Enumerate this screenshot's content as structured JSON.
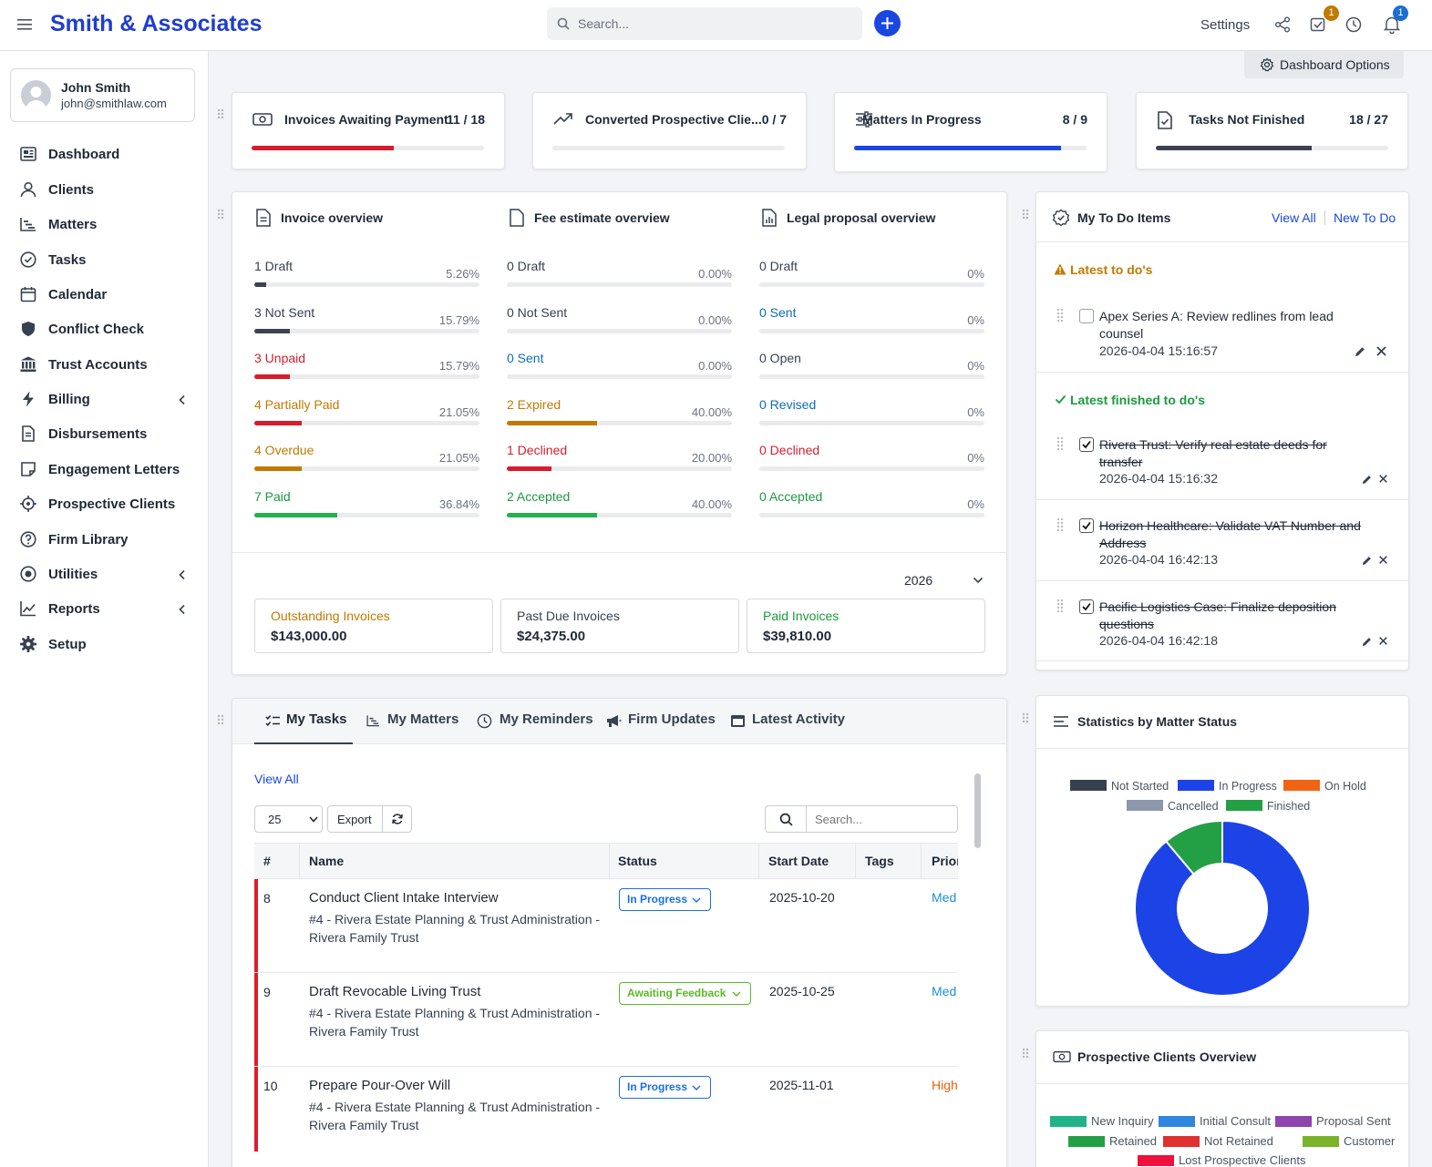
{
  "topbar": {
    "brand": "Smith & Associates",
    "search_placeholder": "Search...",
    "settings": "Settings",
    "task_badge": "1",
    "notif_badge": "1"
  },
  "user": {
    "name": "John Smith",
    "email": "john@smithlaw.com"
  },
  "nav": [
    {
      "label": "Dashboard",
      "icon": "dashboard-icon"
    },
    {
      "label": "Clients",
      "icon": "user-icon"
    },
    {
      "label": "Matters",
      "icon": "matters-icon"
    },
    {
      "label": "Tasks",
      "icon": "check-circle-icon"
    },
    {
      "label": "Calendar",
      "icon": "calendar-icon"
    },
    {
      "label": "Conflict Check",
      "icon": "shield-icon"
    },
    {
      "label": "Trust Accounts",
      "icon": "bank-icon"
    },
    {
      "label": "Billing",
      "icon": "bolt-icon"
    },
    {
      "label": "Disbursements",
      "icon": "document-icon"
    },
    {
      "label": "Engagement Letters",
      "icon": "note-icon"
    },
    {
      "label": "Prospective Clients",
      "icon": "crosshair-icon"
    },
    {
      "label": "Firm Library",
      "icon": "question-icon"
    },
    {
      "label": "Utilities",
      "icon": "radio-icon"
    },
    {
      "label": "Reports",
      "icon": "chart-line-icon"
    },
    {
      "label": "Setup",
      "icon": "gear-icon"
    }
  ],
  "dashboard_options": "Dashboard Options",
  "stats": [
    {
      "title": "Invoices Awaiting Payment",
      "value": "11 / 18",
      "progress": 0.61,
      "color": "#d71c2b"
    },
    {
      "title": "Converted Prospective Clie...",
      "value": "0 / 7",
      "progress": 0,
      "color": "#1a47e0"
    },
    {
      "title": "Matters In Progress",
      "value": "8 / 9",
      "progress": 0.89,
      "color": "#1a47e0"
    },
    {
      "title": "Tasks Not Finished",
      "value": "18 / 27",
      "progress": 0.67,
      "color": "#3b4252"
    }
  ],
  "overview": {
    "invoice": {
      "title": "Invoice overview",
      "rows": [
        {
          "label": "1 Draft",
          "pct": "5.26%",
          "value": 0.0526,
          "color": "#3b4252",
          "text_color": "#374151"
        },
        {
          "label": "3 Not Sent",
          "pct": "15.79%",
          "value": 0.1579,
          "color": "#3b4252",
          "text_color": "#374151"
        },
        {
          "label": "3 Unpaid",
          "pct": "15.79%",
          "value": 0.1579,
          "color": "#d71c2b",
          "text_color": "#d71c2b"
        },
        {
          "label": "4 Partially Paid",
          "pct": "21.05%",
          "value": 0.2105,
          "color": "#d71c2b",
          "text_color": "#c17a00"
        },
        {
          "label": "4 Overdue",
          "pct": "21.05%",
          "value": 0.2105,
          "color": "#c17a00",
          "text_color": "#c17a00"
        },
        {
          "label": "7 Paid",
          "pct": "36.84%",
          "value": 0.3684,
          "color": "#22b14c",
          "text_color": "#1a9a3f"
        }
      ]
    },
    "fee": {
      "title": "Fee estimate overview",
      "rows": [
        {
          "label": "0 Draft",
          "pct": "0.00%",
          "value": 0,
          "color": "#3b4252",
          "text_color": "#374151"
        },
        {
          "label": "0 Not Sent",
          "pct": "0.00%",
          "value": 0,
          "color": "#3b4252",
          "text_color": "#374151"
        },
        {
          "label": "0 Sent",
          "pct": "0.00%",
          "value": 0,
          "color": "#0a6fb8",
          "text_color": "#0a6fb8"
        },
        {
          "label": "2 Expired",
          "pct": "40.00%",
          "value": 0.4,
          "color": "#c17a00",
          "text_color": "#c17a00"
        },
        {
          "label": "1 Declined",
          "pct": "20.00%",
          "value": 0.2,
          "color": "#d71c2b",
          "text_color": "#d71c2b"
        },
        {
          "label": "2 Accepted",
          "pct": "40.00%",
          "value": 0.4,
          "color": "#22b14c",
          "text_color": "#1a9a3f"
        }
      ]
    },
    "proposal": {
      "title": "Legal proposal overview",
      "rows": [
        {
          "label": "0 Draft",
          "pct": "0%",
          "value": 0,
          "color": "#3b4252",
          "text_color": "#374151"
        },
        {
          "label": "0 Sent",
          "pct": "0%",
          "value": 0,
          "color": "#0a6fb8",
          "text_color": "#0a6fb8"
        },
        {
          "label": "0 Open",
          "pct": "0%",
          "value": 0,
          "color": "#3b4252",
          "text_color": "#374151"
        },
        {
          "label": "0 Revised",
          "pct": "0%",
          "value": 0,
          "color": "#0a6fb8",
          "text_color": "#0a6fb8"
        },
        {
          "label": "0 Declined",
          "pct": "0%",
          "value": 0,
          "color": "#d71c2b",
          "text_color": "#d71c2b"
        },
        {
          "label": "0 Accepted",
          "pct": "0%",
          "value": 0,
          "color": "#22b14c",
          "text_color": "#1a9a3f"
        }
      ]
    },
    "year": "2026",
    "summary": [
      {
        "label": "Outstanding Invoices",
        "value": "$143,000.00",
        "color": "#c17a00"
      },
      {
        "label": "Past Due Invoices",
        "value": "$24,375.00",
        "color": "#374151"
      },
      {
        "label": "Paid Invoices",
        "value": "$39,810.00",
        "color": "#1a9a3f"
      }
    ]
  },
  "todo": {
    "title": "My To Do Items",
    "view_all": "View All",
    "new": "New To Do",
    "latest_heading": "Latest to do's",
    "finished_heading": "Latest finished to do's",
    "latest": [
      {
        "title": "Apex Series A: Review redlines from lead counsel",
        "date": "2026-04-04 15:16:57"
      }
    ],
    "finished": [
      {
        "title": "Rivera Trust: Verify real estate deeds for transfer",
        "date": "2026-04-04 15:16:32"
      },
      {
        "title": "Horizon Healthcare: Validate VAT Number and Address",
        "date": "2026-04-04 16:42:13"
      },
      {
        "title": "Pacific Logistics Case: Finalize deposition questions",
        "date": "2026-04-04 16:42:18"
      }
    ]
  },
  "tasks_panel": {
    "tabs": [
      "My Tasks",
      "My Matters",
      "My Reminders",
      "Firm Updates",
      "Latest Activity"
    ],
    "view_all": "View All",
    "page_size": "25",
    "export": "Export",
    "search_placeholder": "Search...",
    "columns": [
      "#",
      "Name",
      "Status",
      "Start Date",
      "Tags",
      "Prior"
    ],
    "rows": [
      {
        "num": "8",
        "name": "Conduct Client Intake Interview",
        "sub": "#4 - Rivera Estate Planning & Trust Administration - Rivera Family Trust",
        "status": "In Progress",
        "status_color": "#1a6fe0",
        "start": "2025-10-20",
        "priority": "Med",
        "priority_color": "#1a8fd8"
      },
      {
        "num": "9",
        "name": "Draft Revocable Living Trust",
        "sub": "#4 - Rivera Estate Planning & Trust Administration - Rivera Family Trust",
        "status": "Awaiting Feedback",
        "status_color": "#5cb82a",
        "start": "2025-10-25",
        "priority": "Med",
        "priority_color": "#1a8fd8"
      },
      {
        "num": "10",
        "name": "Prepare Pour-Over Will",
        "sub": "#4 - Rivera Estate Planning & Trust Administration - Rivera Family Trust",
        "status": "In Progress",
        "status_color": "#1a6fe0",
        "start": "2025-11-01",
        "priority": "High",
        "priority_color": "#e8620c"
      }
    ]
  },
  "matter_stats": {
    "title": "Statistics by Matter Status",
    "chart_data": {
      "type": "pie",
      "categories": [
        "Not Started",
        "In Progress",
        "On Hold",
        "Cancelled",
        "Finished"
      ],
      "values": [
        0,
        8,
        0,
        0,
        1
      ],
      "colors": [
        "#36404f",
        "#1c43e6",
        "#f06414",
        "#8c97ab",
        "#23a046"
      ]
    }
  },
  "prospective": {
    "title": "Prospective Clients Overview",
    "legend": [
      {
        "label": "New Inquiry",
        "color": "#20b38a"
      },
      {
        "label": "Initial Consult",
        "color": "#2e86de"
      },
      {
        "label": "Proposal Sent",
        "color": "#8e44ad"
      },
      {
        "label": "Retained",
        "color": "#23a046"
      },
      {
        "label": "Not Retained",
        "color": "#e03131"
      },
      {
        "label": "Customer",
        "color": "#7cb32b"
      },
      {
        "label": "Lost Prospective Clients",
        "color": "#f0103c"
      }
    ]
  }
}
